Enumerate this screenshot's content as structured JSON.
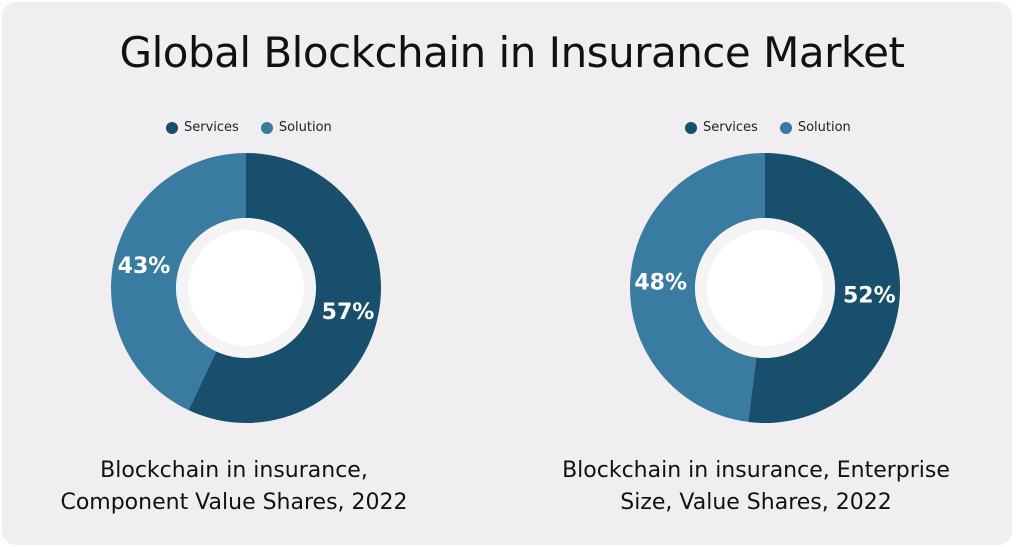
{
  "title": "Global Blockchain in Insurance Market",
  "colors": {
    "Services": "#174f6c",
    "Solution": "#3a7ca1"
  },
  "chart_data": [
    {
      "type": "pie",
      "variant": "donut",
      "title": "Blockchain in insurance, Component Value Shares, 2022",
      "title_lines": [
        "Blockchain in insurance,",
        "Component Value Shares, 2022"
      ],
      "legend": [
        "Services",
        "Solution"
      ],
      "legend_position": "top",
      "categories": [
        "Services",
        "Solution"
      ],
      "values": [
        57,
        43
      ],
      "labels": [
        "57%",
        "43%"
      ]
    },
    {
      "type": "pie",
      "variant": "donut",
      "title": "Blockchain in insurance, Enterprise Size, Value Shares, 2022",
      "title_lines": [
        "Blockchain in insurance, Enterprise",
        "Size, Value Shares, 2022"
      ],
      "legend": [
        "Services",
        "Solution"
      ],
      "legend_position": "top",
      "categories": [
        "Services",
        "Solution"
      ],
      "values": [
        52,
        48
      ],
      "labels": [
        "52%",
        "48%"
      ]
    }
  ]
}
